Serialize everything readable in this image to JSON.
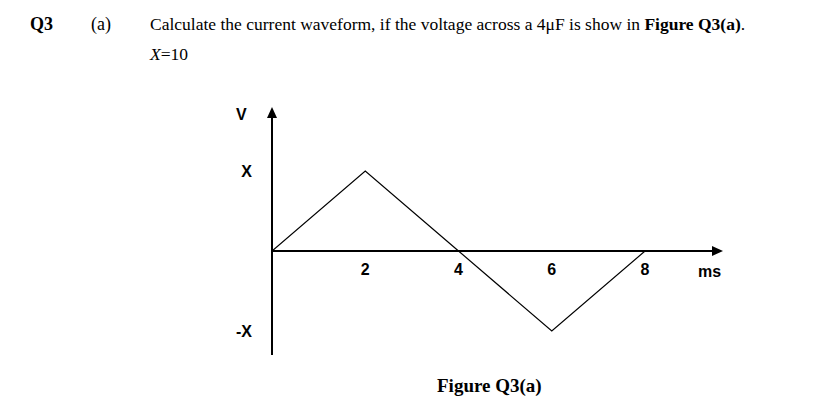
{
  "question": {
    "number": "Q3",
    "part": "(a)",
    "text": "Calculate the current waveform, if the voltage across a 4μF is show in ",
    "figure_ref": "Figure Q3(a)",
    "end": ".",
    "given_symbol": "X",
    "given_text": "=10"
  },
  "chart_data": {
    "type": "line",
    "title": "Figure Q3(a)",
    "x_label": "ms",
    "y_label": "V",
    "x": [
      0,
      2,
      4,
      6,
      8
    ],
    "values": [
      0,
      10,
      0,
      -10,
      0
    ],
    "color": "#000000",
    "xlim": [
      0,
      9.5
    ],
    "xticks": [
      2,
      4,
      6,
      8
    ],
    "ylim": [
      -13,
      17
    ],
    "yticks": [
      {
        "value": 10,
        "label": "X"
      },
      {
        "value": -10,
        "label": "-X"
      }
    ],
    "grid": false
  }
}
